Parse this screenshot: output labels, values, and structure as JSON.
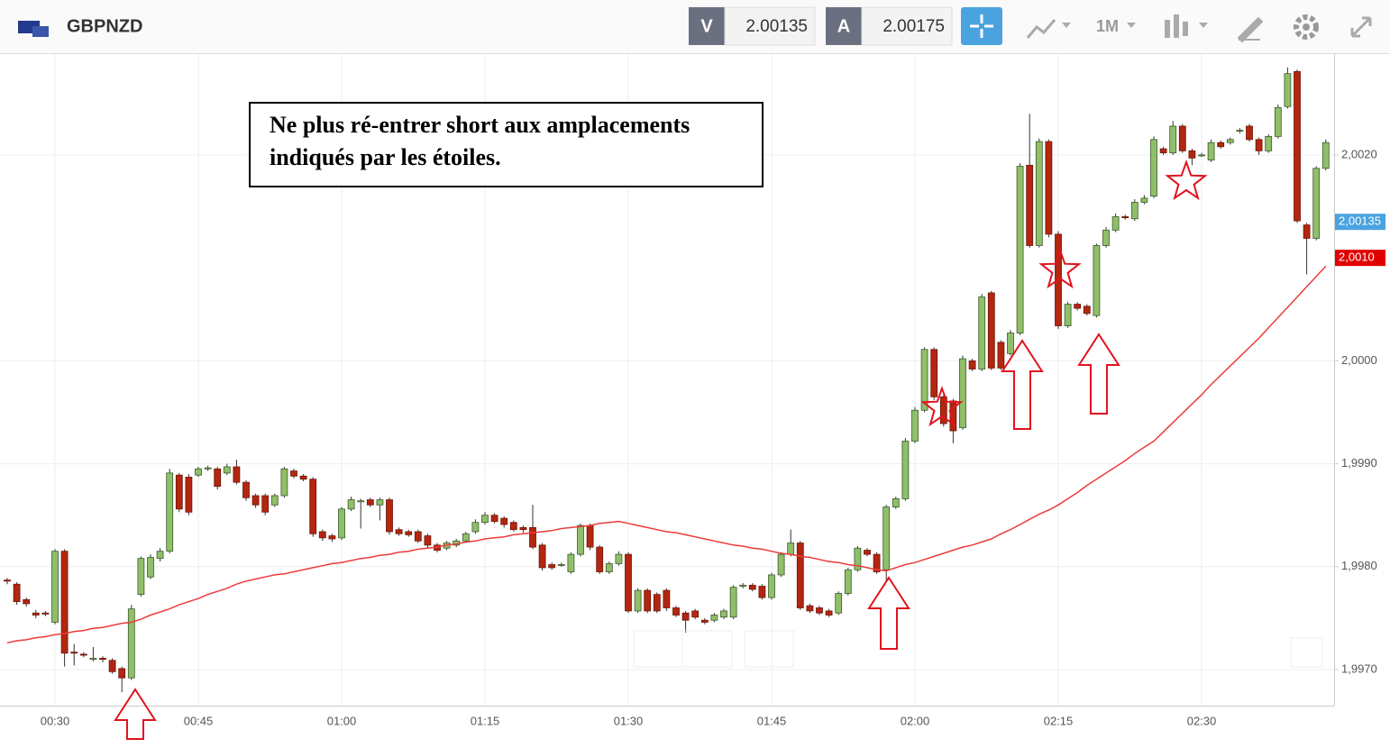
{
  "toolbar": {
    "symbol": "GBPNZD",
    "sell_label": "V",
    "sell_price": "2.00135",
    "buy_label": "A",
    "buy_price": "2.00175",
    "interval": "1M"
  },
  "annotation": {
    "lines": [
      "Ne plus ré-entrer short aux amplacements",
      "indiqués par les étoiles."
    ]
  },
  "chart_data": {
    "type": "candlestick",
    "categories": [
      null,
      null,
      null,
      null,
      null,
      "00:30",
      null,
      null,
      null,
      null,
      null,
      null,
      null,
      null,
      null,
      null,
      null,
      null,
      null,
      null,
      "00:45",
      null,
      null,
      null,
      null,
      null,
      null,
      null,
      null,
      null,
      null,
      null,
      null,
      null,
      null,
      "01:00",
      null,
      null,
      null,
      null,
      null,
      null,
      null,
      null,
      null,
      null,
      null,
      null,
      null,
      null,
      "01:15",
      null,
      null,
      null,
      null,
      null,
      null,
      null,
      null,
      null,
      null,
      null,
      null,
      null,
      null,
      "01:30",
      null,
      null,
      null,
      null,
      null,
      null,
      null,
      null,
      null,
      null,
      null,
      null,
      null,
      null,
      "01:45",
      null,
      null,
      null,
      null,
      null,
      null,
      null,
      null,
      null,
      null,
      null,
      null,
      null,
      null,
      "02:00",
      null,
      null,
      null,
      null,
      null,
      null,
      null,
      null,
      null,
      null,
      null,
      null,
      null,
      null,
      "02:15",
      null,
      null,
      null,
      null,
      null,
      null,
      null,
      null,
      null,
      null,
      null,
      null,
      null,
      null,
      "02:30",
      null,
      null,
      null,
      null,
      null,
      null,
      null,
      null,
      null,
      null,
      null,
      null,
      null
    ],
    "ohlc": [
      [
        1.99787,
        1.99789,
        1.99783,
        1.99786
      ],
      [
        1.99783,
        1.99785,
        1.99763,
        1.99766
      ],
      [
        1.99768,
        1.9977,
        1.99761,
        1.99764
      ],
      [
        1.99755,
        1.99758,
        1.9975,
        1.99753
      ],
      [
        1.99755,
        1.99757,
        1.99752,
        1.99754
      ],
      [
        1.99746,
        1.99817,
        1.99744,
        1.99815
      ],
      [
        1.99815,
        1.99817,
        1.99703,
        1.99716
      ],
      [
        1.99717,
        1.99725,
        1.99704,
        1.99716
      ],
      [
        1.99715,
        1.99717,
        1.99712,
        1.99714
      ],
      [
        1.99711,
        1.99722,
        1.99708,
        1.99711
      ],
      [
        1.99711,
        1.99713,
        1.99707,
        1.9971
      ],
      [
        1.99709,
        1.99711,
        1.99696,
        1.99698
      ],
      [
        1.99701,
        1.99703,
        1.99678,
        1.99692
      ],
      [
        1.99692,
        1.99763,
        1.9969,
        1.99759
      ],
      [
        1.99773,
        1.9981,
        1.99771,
        1.99808
      ],
      [
        1.9979,
        1.99812,
        1.99788,
        1.99809
      ],
      [
        1.99808,
        1.99818,
        1.99805,
        1.99815
      ],
      [
        1.99815,
        1.99895,
        1.99813,
        1.99891
      ],
      [
        1.99889,
        1.99891,
        1.99853,
        1.99856
      ],
      [
        1.99887,
        1.9989,
        1.9985,
        1.99853
      ],
      [
        1.99889,
        1.99897,
        1.99887,
        1.99895
      ],
      [
        1.99895,
        1.99898,
        1.99893,
        1.99896
      ],
      [
        1.99895,
        1.99897,
        1.99875,
        1.99878
      ],
      [
        1.99891,
        1.999,
        1.99889,
        1.99897
      ],
      [
        1.99897,
        1.99904,
        1.9988,
        1.99882
      ],
      [
        1.99882,
        1.99884,
        1.99864,
        1.99867
      ],
      [
        1.99869,
        1.99871,
        1.99857,
        1.9986
      ],
      [
        1.99869,
        1.99871,
        1.9985,
        1.99853
      ],
      [
        1.9986,
        1.99871,
        1.99858,
        1.99869
      ],
      [
        1.99869,
        1.99897,
        1.99867,
        1.99895
      ],
      [
        1.99893,
        1.99895,
        1.99886,
        1.99888
      ],
      [
        1.99888,
        1.9989,
        1.99883,
        1.99885
      ],
      [
        1.99885,
        1.99887,
        1.99829,
        1.99832
      ],
      [
        1.99834,
        1.99836,
        1.99825,
        1.99828
      ],
      [
        1.9983,
        1.99832,
        1.99824,
        1.99827
      ],
      [
        1.99828,
        1.99858,
        1.99826,
        1.99856
      ],
      [
        1.99856,
        1.99868,
        1.99854,
        1.99865
      ],
      [
        1.99863,
        1.99866,
        1.99837,
        1.99864
      ],
      [
        1.99865,
        1.99867,
        1.99858,
        1.9986
      ],
      [
        1.9986,
        1.99867,
        1.99845,
        1.99865
      ],
      [
        1.99865,
        1.99867,
        1.99831,
        1.99834
      ],
      [
        1.99836,
        1.99838,
        1.9983,
        1.99832
      ],
      [
        1.99834,
        1.99836,
        1.99829,
        1.99831
      ],
      [
        1.99834,
        1.99836,
        1.99823,
        1.99825
      ],
      [
        1.9983,
        1.99832,
        1.99818,
        1.99821
      ],
      [
        1.99821,
        1.99823,
        1.99814,
        1.99816
      ],
      [
        1.99818,
        1.99825,
        1.99816,
        1.99823
      ],
      [
        1.99821,
        1.99827,
        1.99819,
        1.99825
      ],
      [
        1.99825,
        1.99834,
        1.99823,
        1.99832
      ],
      [
        1.99834,
        1.99846,
        1.99832,
        1.99843
      ],
      [
        1.99843,
        1.99853,
        1.99841,
        1.9985
      ],
      [
        1.9985,
        1.99852,
        1.99842,
        1.99844
      ],
      [
        1.99847,
        1.99849,
        1.99838,
        1.99841
      ],
      [
        1.99843,
        1.99845,
        1.99834,
        1.99836
      ],
      [
        1.99838,
        1.9984,
        1.99833,
        1.99836
      ],
      [
        1.99838,
        1.9986,
        1.99817,
        1.99819
      ],
      [
        1.99821,
        1.99823,
        1.99796,
        1.99799
      ],
      [
        1.99802,
        1.99804,
        1.99797,
        1.99799
      ],
      [
        1.99802,
        1.99804,
        1.998,
        1.99802
      ],
      [
        1.99795,
        1.99814,
        1.99793,
        1.99812
      ],
      [
        1.99812,
        1.99842,
        1.9981,
        1.9984
      ],
      [
        1.9984,
        1.99842,
        1.99816,
        1.99819
      ],
      [
        1.99819,
        1.99821,
        1.99793,
        1.99795
      ],
      [
        1.99795,
        1.99805,
        1.99793,
        1.99803
      ],
      [
        1.99803,
        1.99815,
        1.99801,
        1.99812
      ],
      [
        1.99812,
        1.99814,
        1.99755,
        1.99757
      ],
      [
        1.99757,
        1.99779,
        1.99755,
        1.99777
      ],
      [
        1.99777,
        1.99779,
        1.99755,
        1.99757
      ],
      [
        1.99773,
        1.99775,
        1.99755,
        1.99757
      ],
      [
        1.99777,
        1.99779,
        1.99757,
        1.9976
      ],
      [
        1.9976,
        1.99762,
        1.99751,
        1.99753
      ],
      [
        1.99755,
        1.99757,
        1.99736,
        1.99748
      ],
      [
        1.99757,
        1.99759,
        1.99749,
        1.99751
      ],
      [
        1.99748,
        1.9975,
        1.99744,
        1.99746
      ],
      [
        1.99748,
        1.99755,
        1.99746,
        1.99753
      ],
      [
        1.99751,
        1.99759,
        1.99749,
        1.99757
      ],
      [
        1.99751,
        1.99782,
        1.99749,
        1.9978
      ],
      [
        1.99781,
        1.99784,
        1.99779,
        1.99782
      ],
      [
        1.99782,
        1.99784,
        1.99776,
        1.99778
      ],
      [
        1.99781,
        1.99783,
        1.99768,
        1.9977
      ],
      [
        1.9977,
        1.99794,
        1.99768,
        1.99792
      ],
      [
        1.99792,
        1.99814,
        1.9979,
        1.99812
      ],
      [
        1.99812,
        1.99836,
        1.9981,
        1.99823
      ],
      [
        1.99823,
        1.99825,
        1.99758,
        1.9976
      ],
      [
        1.99762,
        1.99764,
        1.99755,
        1.99757
      ],
      [
        1.9976,
        1.99762,
        1.99753,
        1.99755
      ],
      [
        1.99757,
        1.99759,
        1.99751,
        1.99753
      ],
      [
        1.99755,
        1.99776,
        1.99753,
        1.99774
      ],
      [
        1.99774,
        1.99799,
        1.99772,
        1.99797
      ],
      [
        1.99797,
        1.9982,
        1.99795,
        1.99818
      ],
      [
        1.99816,
        1.99818,
        1.9981,
        1.99812
      ],
      [
        1.99812,
        1.99814,
        1.99793,
        1.99795
      ],
      [
        1.99797,
        1.9986,
        1.99786,
        1.99858
      ],
      [
        1.99858,
        1.99868,
        1.99856,
        1.99866
      ],
      [
        1.99866,
        1.99925,
        1.99864,
        1.99922
      ],
      [
        1.99922,
        1.99955,
        1.9992,
        1.99952
      ],
      [
        1.99952,
        2.00013,
        1.9995,
        2.00011
      ],
      [
        2.00011,
        2.00013,
        1.99962,
        1.99965
      ],
      [
        1.99965,
        1.99967,
        1.99936,
        1.99939
      ],
      [
        1.99961,
        1.99963,
        1.9992,
        1.99932
      ],
      [
        1.99935,
        2.00005,
        1.99933,
        2.00002
      ],
      [
        2.0,
        2.00002,
        1.9999,
        1.99992
      ],
      [
        1.99992,
        2.00065,
        1.9999,
        2.00062
      ],
      [
        2.00066,
        2.00068,
        1.99991,
        1.99993
      ],
      [
        2.00018,
        2.0002,
        1.99991,
        1.99993
      ],
      [
        2.00007,
        2.0003,
        2.00005,
        2.00027
      ],
      [
        2.00027,
        2.00192,
        2.00025,
        2.00189
      ],
      [
        2.0019,
        2.0024,
        2.0011,
        2.00112
      ],
      [
        2.00112,
        2.00216,
        2.0011,
        2.00213
      ],
      [
        2.00213,
        2.00215,
        2.0012,
        2.00123
      ],
      [
        2.00123,
        2.00126,
        2.00031,
        2.00034
      ],
      [
        2.00034,
        2.00057,
        2.00032,
        2.00055
      ],
      [
        2.00055,
        2.00057,
        2.00049,
        2.00051
      ],
      [
        2.00053,
        2.00055,
        2.00044,
        2.00046
      ],
      [
        2.00044,
        2.00114,
        2.00042,
        2.00112
      ],
      [
        2.00112,
        2.0013,
        2.0011,
        2.00127
      ],
      [
        2.00127,
        2.00143,
        2.00125,
        2.0014
      ],
      [
        2.0014,
        2.00142,
        2.00137,
        2.00139
      ],
      [
        2.00138,
        2.00157,
        2.00136,
        2.00154
      ],
      [
        2.00154,
        2.00161,
        2.00152,
        2.00158
      ],
      [
        2.0016,
        2.00218,
        2.00158,
        2.00215
      ],
      [
        2.00206,
        2.00208,
        2.002,
        2.00202
      ],
      [
        2.00202,
        2.00233,
        2.002,
        2.00228
      ],
      [
        2.00228,
        2.0023,
        2.00202,
        2.00204
      ],
      [
        2.00204,
        2.00206,
        2.0019,
        2.00197
      ],
      [
        2.002,
        2.00202,
        2.00198,
        2.002
      ],
      [
        2.00195,
        2.00215,
        2.00193,
        2.00212
      ],
      [
        2.00212,
        2.00214,
        2.00206,
        2.00208
      ],
      [
        2.00212,
        2.00217,
        2.0021,
        2.00215
      ],
      [
        2.00224,
        2.00226,
        2.00221,
        2.00224
      ],
      [
        2.00228,
        2.0023,
        2.00213,
        2.00215
      ],
      [
        2.00215,
        2.00217,
        2.002,
        2.00204
      ],
      [
        2.00204,
        2.0022,
        2.00202,
        2.00218
      ],
      [
        2.00218,
        2.00249,
        2.00216,
        2.00246
      ],
      [
        2.00247,
        2.00285,
        2.00245,
        2.00279
      ],
      [
        2.00281,
        2.00283,
        2.00134,
        2.00136
      ],
      [
        2.00132,
        2.00134,
        2.00084,
        2.00119
      ],
      [
        2.00119,
        2.00189,
        2.00117,
        2.00187
      ],
      [
        2.00187,
        2.00215,
        2.00185,
        2.00212
      ]
    ],
    "up_color": "#8fbf6a",
    "down_color": "#b3260f",
    "series": [
      {
        "color": "#ec3b3b",
        "values": [
          1.99726,
          1.99728,
          1.99729,
          1.99731,
          1.99732,
          1.99734,
          1.99735,
          1.99737,
          1.99738,
          1.9974,
          1.99741,
          1.99743,
          1.99745,
          1.99746,
          1.99749,
          1.99753,
          1.99756,
          1.99759,
          1.99763,
          1.99766,
          1.99769,
          1.99773,
          1.99776,
          1.99779,
          1.99783,
          1.99786,
          1.99788,
          1.9979,
          1.99792,
          1.99793,
          1.99795,
          1.99797,
          1.99799,
          1.99801,
          1.99803,
          1.99804,
          1.99806,
          1.99808,
          1.99809,
          1.99811,
          1.99812,
          1.99814,
          1.99815,
          1.99817,
          1.99818,
          1.99819,
          1.99821,
          1.99822,
          1.99824,
          1.99825,
          1.99827,
          1.99828,
          1.99829,
          1.99831,
          1.99832,
          1.99833,
          1.99834,
          1.99835,
          1.99837,
          1.99838,
          1.99839,
          1.9984,
          1.99842,
          1.99843,
          1.99844,
          1.99842,
          1.9984,
          1.99838,
          1.99836,
          1.99834,
          1.99833,
          1.99831,
          1.99829,
          1.99827,
          1.99825,
          1.99823,
          1.99821,
          1.9982,
          1.99818,
          1.99817,
          1.99815,
          1.99813,
          1.99812,
          1.9981,
          1.99809,
          1.99807,
          1.99805,
          1.99804,
          1.99802,
          1.99801,
          1.99799,
          1.99797,
          1.99796,
          1.99799,
          1.99802,
          1.99804,
          1.99807,
          1.9981,
          1.99813,
          1.99816,
          1.99819,
          1.99821,
          1.99824,
          1.99827,
          1.99832,
          1.99836,
          1.99841,
          1.99846,
          1.99851,
          1.99855,
          1.9986,
          1.99866,
          1.99872,
          1.99879,
          1.99885,
          1.99891,
          1.99897,
          1.99903,
          1.9991,
          1.99916,
          1.99922,
          1.99931,
          1.9994,
          1.99949,
          1.99958,
          1.99967,
          1.99977,
          1.99986,
          1.99995,
          2.00004,
          2.00013,
          2.00022,
          2.00032,
          2.00042,
          2.00052,
          2.00062,
          2.00072,
          2.00082,
          2.00092
        ]
      }
    ],
    "ylim": [
      1.99665,
      2.00298
    ],
    "yticks": [
      {
        "value": 1.997,
        "label": "1,9970"
      },
      {
        "value": 1.998,
        "label": "1,9980"
      },
      {
        "value": 1.999,
        "label": "1,9990"
      },
      {
        "value": 2.0,
        "label": "2,0000"
      },
      {
        "value": 2.002,
        "label": "2,0020"
      }
    ],
    "price_labels": [
      {
        "value": 2.00135,
        "label": "2,00135",
        "color": "#4aa3df"
      },
      {
        "value": 2.001,
        "label": "2,0010",
        "color": "#e00000"
      }
    ],
    "grid": true
  }
}
